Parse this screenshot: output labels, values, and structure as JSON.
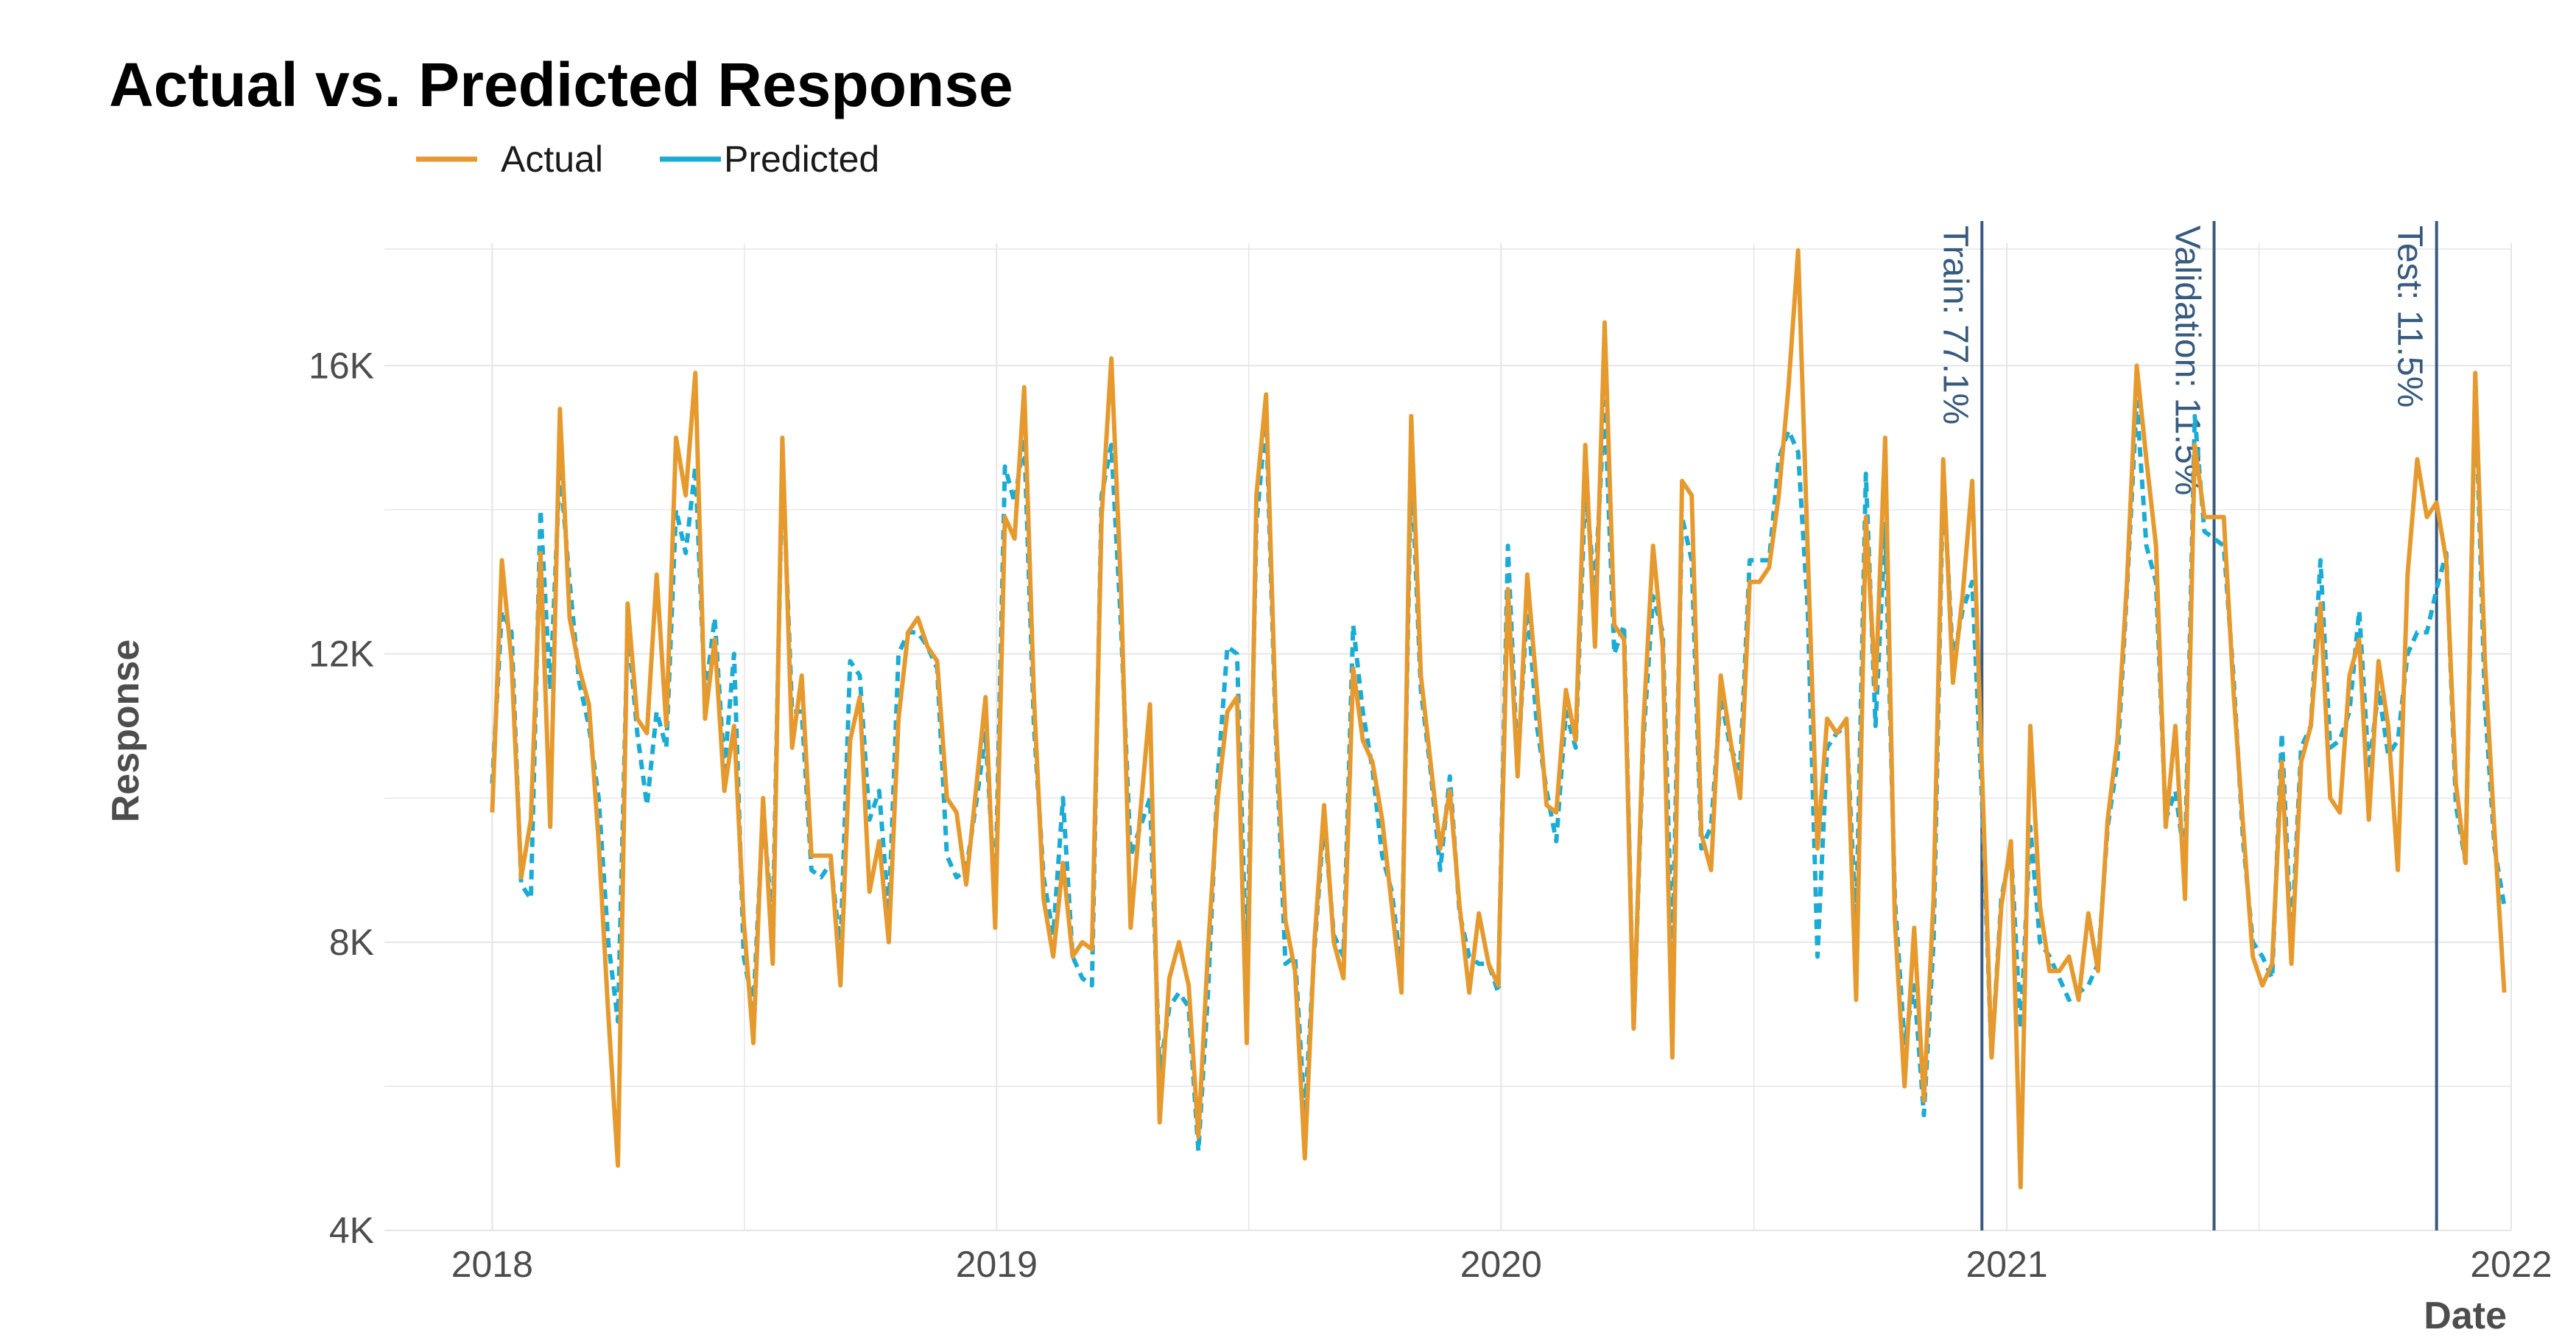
{
  "chart_data": {
    "type": "line",
    "title": "Actual vs. Predicted Response",
    "xlabel": "Date",
    "ylabel": "Response",
    "x_axis": {
      "type": "date",
      "range": [
        "2017-10-15",
        "2022-01-01"
      ],
      "ticks": [
        "2018-01-01",
        "2019-01-01",
        "2020-01-01",
        "2021-01-01",
        "2022-01-01"
      ],
      "tick_labels": [
        "2018",
        "2019",
        "2020",
        "2021",
        "2022"
      ]
    },
    "y_axis": {
      "range": [
        4000,
        17700
      ],
      "ticks": [
        4000,
        8000,
        12000,
        16000
      ],
      "tick_labels": [
        "4K",
        "8K",
        "12K",
        "16K"
      ],
      "minor_ticks": [
        6000,
        10000,
        14000
      ]
    },
    "grid": true,
    "legend_position": "top-left",
    "start_date": "2018-01-01",
    "interval_days": 7,
    "colors": {
      "actual": "#E69A2E",
      "predicted": "#1BACD5",
      "split_lines": "#375A7F",
      "grid": "#E5E5E5"
    },
    "series": [
      {
        "name": "Actual",
        "style": "solid",
        "values": [
          9800,
          13300,
          11900,
          8900,
          9700,
          13400,
          9600,
          15400,
          12500,
          11800,
          11300,
          9400,
          7000,
          4900,
          12700,
          11100,
          10900,
          13100,
          11000,
          15000,
          14200,
          15900,
          11100,
          12200,
          10100,
          11000,
          8300,
          6600,
          10000,
          7700,
          15000,
          10700,
          11700,
          9200,
          9200,
          9200,
          7400,
          10800,
          11400,
          8700,
          9400,
          8000,
          11100,
          12300,
          12500,
          12100,
          11900,
          10000,
          9800,
          8800,
          10100,
          11400,
          8200,
          13900,
          13600,
          15700,
          11400,
          8600,
          7800,
          9100,
          7800,
          8000,
          7900,
          13900,
          16100,
          12900,
          8200,
          9800,
          11300,
          5500,
          7500,
          8000,
          7400,
          5300,
          7900,
          10000,
          11200,
          11400,
          6600,
          14200,
          15600,
          11100,
          8300,
          7600,
          5000,
          8000,
          9900,
          8000,
          7500,
          11800,
          10800,
          10500,
          9700,
          8500,
          7300,
          15300,
          11700,
          10500,
          9300,
          10100,
          8500,
          7300,
          8400,
          7700,
          7400,
          12900,
          10300,
          13100,
          11500,
          9900,
          9800,
          11500,
          10800,
          14900,
          12100,
          16600,
          12400,
          12200,
          6800,
          11000,
          13500,
          12100,
          6400,
          14400,
          14200,
          9500,
          9000,
          11700,
          10800,
          10000,
          13000,
          13000,
          13200,
          14200,
          15700,
          17600,
          13400,
          9300,
          11100,
          10900,
          11100,
          7200,
          13900,
          11500,
          15000,
          8300,
          6000,
          8200,
          5800,
          8600,
          14700,
          11600,
          12800,
          14400,
          10400,
          6400,
          8500,
          9400,
          4600,
          11000,
          8500,
          7600,
          7600,
          7800,
          7200,
          8400,
          7600,
          9700,
          10800,
          13000,
          16000,
          14700,
          13500,
          9600,
          11000,
          8600,
          14900,
          13900,
          13900,
          13900,
          11500,
          9600,
          7800,
          7400,
          7700,
          10500,
          7700,
          10500,
          11000,
          12700,
          10000,
          9800,
          11700,
          12200,
          9700,
          11900,
          11000,
          9000,
          13100,
          14700,
          13900,
          14100,
          13300,
          10200,
          9100,
          15900,
          11900,
          9500,
          7300
        ]
      },
      {
        "name": "Predicted",
        "style": "dashed",
        "values": [
          10200,
          12600,
          12300,
          8800,
          8600,
          14000,
          11500,
          14600,
          13000,
          11600,
          11000,
          10000,
          8000,
          6900,
          12400,
          10900,
          9900,
          11200,
          10700,
          14000,
          13400,
          14600,
          11400,
          12500,
          10400,
          12000,
          7800,
          7100,
          9800,
          8200,
          14700,
          11200,
          11200,
          9000,
          8900,
          9100,
          7900,
          11900,
          11700,
          9700,
          10100,
          8400,
          12000,
          12300,
          12300,
          12100,
          11800,
          9200,
          8900,
          9000,
          9900,
          10900,
          8600,
          14600,
          14100,
          15000,
          11000,
          8900,
          8100,
          10000,
          7800,
          7500,
          7400,
          14200,
          14900,
          12400,
          9200,
          9600,
          10000,
          6200,
          7100,
          7300,
          7100,
          5100,
          7300,
          10300,
          12100,
          12000,
          7500,
          13800,
          15300,
          10900,
          7700,
          7800,
          5600,
          7900,
          9700,
          8100,
          7800,
          12400,
          11200,
          10400,
          9200,
          8700,
          7600,
          14700,
          11500,
          10400,
          9000,
          10300,
          8400,
          7800,
          7700,
          7700,
          7300,
          13500,
          10400,
          12700,
          11000,
          10100,
          9400,
          11200,
          10700,
          14300,
          12900,
          15500,
          12000,
          12400,
          6800,
          10800,
          12800,
          12300,
          7800,
          13900,
          13300,
          9300,
          9600,
          11400,
          10700,
          10400,
          13300,
          13300,
          13300,
          14700,
          15100,
          14800,
          12600,
          7800,
          10700,
          10900,
          11000,
          8200,
          14500,
          11000,
          13800,
          8600,
          6600,
          7400,
          5600,
          8000,
          14500,
          11900,
          12600,
          13000,
          10000,
          6400,
          8600,
          9300,
          6800,
          9600,
          8000,
          7800,
          7500,
          7200,
          7300,
          7400,
          7700,
          9600,
          10500,
          12900,
          15500,
          13500,
          13000,
          9700,
          10100,
          9100,
          15300,
          13700,
          13600,
          13500,
          11700,
          9400,
          8000,
          7800,
          7500,
          10900,
          8000,
          10700,
          11000,
          13300,
          10700,
          10800,
          11200,
          12600,
          10400,
          11500,
          10600,
          10800,
          12000,
          12300,
          12300,
          12900,
          13400,
          9900,
          9100,
          15800,
          11300,
          9300,
          8500
        ]
      }
    ],
    "annotations": [
      {
        "label": "Train: 77.1%",
        "x": "2020-12-14"
      },
      {
        "label": "Validation: 11.5%",
        "x": "2021-05-31"
      },
      {
        "label": "Test: 11.5%",
        "x": "2021-11-08"
      }
    ]
  }
}
